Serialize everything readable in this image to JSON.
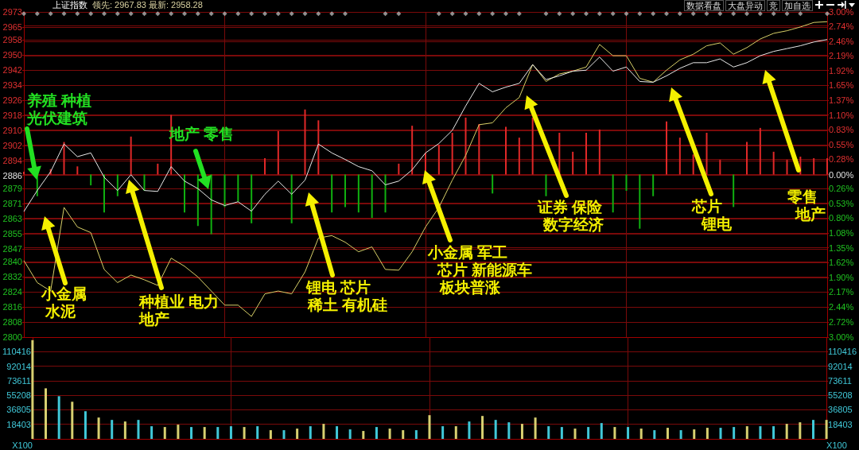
{
  "chart_data": [
    {
      "type": "line",
      "title": "上证指数",
      "subtitle": "领先: 2967.83 最新: 2958.28",
      "categories": [
        null,
        null,
        null,
        null,
        null,
        null,
        null,
        null,
        null,
        null,
        null,
        null,
        null,
        null,
        null,
        null,
        null,
        null,
        null,
        null,
        null,
        null,
        null,
        null,
        null,
        null,
        null,
        null,
        null,
        null,
        null,
        null,
        null,
        null,
        null,
        null,
        null,
        null,
        null,
        null,
        null,
        null,
        null,
        null,
        null,
        null,
        null,
        null,
        null,
        null,
        null,
        null,
        null,
        null,
        null,
        null,
        null,
        null,
        null,
        null,
        null
      ],
      "series": [
        {
          "type": "bar",
          "axis": "y2",
          "color": "#e02828",
          "values": [
            0.05,
            null,
            0.1,
            0.6,
            0.15,
            null,
            null,
            null,
            0.7,
            null,
            0.2,
            1.1,
            null,
            null,
            null,
            null,
            null,
            null,
            0.3,
            0.8,
            null,
            1.2,
            1.0,
            null,
            null,
            null,
            null,
            null,
            0.2,
            0.9,
            0.4,
            0.55,
            0.77,
            1.05,
            0.93,
            null,
            0.88,
            0.68,
            1.05,
            null,
            0.77,
            0.42,
            0.77,
            0.83,
            null,
            null,
            null,
            null,
            0.98,
            0.68,
            0.37,
            0.77,
            0.27,
            null,
            0.6,
            0.86,
            0.42,
            0.27,
            0.33,
            0.3,
            0.3
          ]
        },
        {
          "type": "bar",
          "axis": "y2",
          "color": "#10b010",
          "values": [
            null,
            -0.4,
            null,
            null,
            null,
            -0.2,
            -0.7,
            -0.4,
            null,
            -0.3,
            null,
            null,
            -0.7,
            -0.95,
            -1.1,
            -0.6,
            -0.5,
            -0.9,
            null,
            null,
            -0.9,
            null,
            null,
            -0.7,
            -0.6,
            -0.7,
            -0.8,
            -0.7,
            null,
            null,
            null,
            null,
            null,
            null,
            null,
            -0.35,
            null,
            null,
            null,
            -0.4,
            null,
            null,
            null,
            null,
            -0.7,
            -0.3,
            -1.0,
            -0.4,
            null,
            null,
            null,
            null,
            null,
            -0.6,
            null,
            null,
            null,
            null,
            null,
            null,
            null
          ]
        },
        {
          "color": "#d8d068",
          "values": [
            2840.7,
            2829,
            2824.5,
            2869,
            2858.6,
            2855.6,
            2836,
            2829,
            2833,
            2830.5,
            2827.5,
            2842,
            2837.7,
            2832,
            2824.5,
            2817,
            2817,
            2811,
            2823,
            2824.5,
            2823,
            2834.7,
            2852.7,
            2854,
            2850.5,
            2845.4,
            2848,
            2836,
            2835.6,
            2845.4,
            2858.6,
            2869,
            2883.5,
            2896.7,
            2913,
            2914,
            2922,
            2927.5,
            2945,
            2936,
            2940,
            2941.5,
            2943.7,
            2955.7,
            2949.7,
            2949.7,
            2937.7,
            2935.6,
            2942,
            2947.5,
            2950.5,
            2955,
            2956.5,
            2950.5,
            2954,
            2958.6,
            2961.6,
            2963,
            2965,
            2967.4,
            2967.8
          ]
        },
        {
          "color": "#e8e8e8",
          "values": [
            2866.8,
            2878,
            2888,
            2902.7,
            2896,
            2898,
            2885,
            2878,
            2886.4,
            2878,
            2877.5,
            2890.7,
            2883,
            2879,
            2873,
            2870,
            2872,
            2867,
            2876,
            2883,
            2876,
            2883.5,
            2902.7,
            2898,
            2894.5,
            2890.7,
            2888.5,
            2881,
            2883,
            2889,
            2898,
            2903,
            2910,
            2923,
            2935,
            2930.5,
            2933,
            2935,
            2945,
            2937,
            2939,
            2941.5,
            2942,
            2949,
            2941.5,
            2943.7,
            2936,
            2935.6,
            2939,
            2943,
            2946,
            2946,
            2948,
            2943.7,
            2946,
            2949.7,
            2952,
            2953.5,
            2955,
            2957,
            2958.3
          ]
        },
        {
          "type": "scatter",
          "marker": "diamond",
          "color": "#b4b4b4",
          "values": [
            2972,
            2972,
            2972,
            2972,
            2972,
            2972,
            2972,
            2972,
            2972,
            2972,
            2972,
            2972,
            2972,
            2972,
            2972,
            2972,
            2972,
            2972,
            2972,
            2972,
            2972,
            2972,
            2972,
            2972,
            2972,
            null,
            null,
            2972,
            2972,
            null,
            null,
            2972,
            2972,
            2972,
            2972,
            2972,
            2972,
            2972,
            null,
            2972,
            2972,
            2972,
            2972,
            2972,
            2972,
            2972,
            2972,
            2972,
            2972,
            2972,
            2972,
            2972,
            2972,
            2972,
            2972,
            2972,
            2972,
            2972,
            2972,
            null,
            2972
          ]
        }
      ],
      "marker": "none",
      "line_style": "solid",
      "grid": true,
      "tick_labels": "y",
      "ylim": [
        2800,
        2973
      ],
      "yticks": [
        2800,
        2808,
        2816,
        2824,
        2832,
        2840,
        2847,
        2855,
        2863,
        2871,
        2879,
        2886,
        2894,
        2902,
        2910,
        2918,
        2926,
        2934,
        2942,
        2950,
        2958,
        2965,
        2973
      ],
      "y2lim": [
        -3,
        3
      ],
      "y2ticks": [
        {
          "value": -3,
          "label": "3.00%"
        },
        {
          "value": -2.72,
          "label": "2.72%"
        },
        {
          "value": -2.44,
          "label": "2.44%"
        },
        {
          "value": -2.17,
          "label": "2.17%"
        },
        {
          "value": -1.9,
          "label": "1.90%"
        },
        {
          "value": -1.62,
          "label": "1.62%"
        },
        {
          "value": -1.35,
          "label": "1.35%"
        },
        {
          "value": -1.08,
          "label": "1.08%"
        },
        {
          "value": -0.8,
          "label": "0.80%"
        },
        {
          "value": -0.53,
          "label": "0.53%"
        },
        {
          "value": -0.26,
          "label": "0.26%"
        },
        {
          "value": 0,
          "label": "0.00%"
        },
        {
          "value": 0.28,
          "label": "0.28%"
        },
        {
          "value": 0.55,
          "label": "0.55%"
        },
        {
          "value": 0.83,
          "label": "0.83%"
        },
        {
          "value": 1.1,
          "label": "1.10%"
        },
        {
          "value": 1.37,
          "label": "1.37%"
        },
        {
          "value": 1.65,
          "label": "1.65%"
        },
        {
          "value": 1.92,
          "label": "1.92%"
        },
        {
          "value": 2.19,
          "label": "2.19%"
        },
        {
          "value": 2.46,
          "label": "2.46%"
        },
        {
          "value": 2.74,
          "label": "2.74%"
        },
        {
          "value": 3,
          "label": "3.00%"
        }
      ],
      "annotations": [
        "养殖 种植",
        "光伏建筑",
        "地产 零售",
        "小金属",
        "水泥",
        "种植业 电力",
        "地产",
        "锂电 芯片",
        "稀土 有机硅",
        "小金属 军工",
        "芯片 新能源车",
        "板块普涨",
        "证券 保险",
        "数字经济",
        "芯片",
        "锂电",
        "零售",
        "地产",
        "数据看盘",
        "大盘异动",
        "竞",
        "加自选"
      ]
    },
    {
      "type": "bar",
      "categories": [
        null,
        null,
        null,
        null,
        null,
        null,
        null,
        null,
        null,
        null,
        null,
        null,
        null,
        null,
        null,
        null,
        null,
        null,
        null,
        null,
        null,
        null,
        null,
        null,
        null,
        null,
        null,
        null,
        null,
        null,
        null,
        null,
        null,
        null,
        null,
        null,
        null,
        null,
        null,
        null,
        null,
        null,
        null,
        null,
        null,
        null,
        null,
        null,
        null,
        null,
        null,
        null,
        null,
        null,
        null,
        null,
        null,
        null,
        null,
        null,
        null
      ],
      "values": [
        125000,
        64000,
        54000,
        47000,
        35000,
        27000,
        24000,
        22000,
        24000,
        16000,
        15000,
        18000,
        15000,
        15000,
        15000,
        16000,
        15000,
        16000,
        11000,
        11000,
        13000,
        16000,
        19000,
        16000,
        12000,
        10000,
        15000,
        13000,
        11000,
        11000,
        30000,
        16000,
        16000,
        22000,
        29000,
        24000,
        21000,
        19000,
        27000,
        16000,
        15000,
        13000,
        15000,
        20000,
        15000,
        15000,
        13000,
        11000,
        14000,
        11000,
        12000,
        14000,
        14000,
        15000,
        16000,
        16000,
        16000,
        19000,
        21000,
        24000,
        24000
      ],
      "colors": [
        "#d8d070",
        "#d8d070",
        "#40c8d8",
        "#d8d070",
        "#40c8d8",
        "#d8d070",
        "#40c8d8",
        "#d8d070",
        "#40c8d8",
        "#40c8d8",
        "#d8d070",
        "#d8d070",
        "#40c8d8",
        "#d8d070",
        "#40c8d8",
        "#40c8d8",
        "#d8d070",
        "#40c8d8",
        "#d8d070",
        "#40c8d8",
        "#d8d070",
        "#40c8d8",
        "#d8d070",
        "#40c8d8",
        "#40c8d8",
        "#d8d070",
        "#40c8d8",
        "#d8d070",
        "#d8d070",
        "#40c8d8",
        "#d8d070",
        "#40c8d8",
        "#d8d070",
        "#40c8d8",
        "#d8d070",
        "#40c8d8",
        "#40c8d8",
        "#d8d070",
        "#d8d070",
        "#40c8d8",
        "#40c8d8",
        "#d8d070",
        "#40c8d8",
        "#40c8d8",
        "#d8d070",
        "#40c8d8",
        "#d8d070",
        "#40c8d8",
        "#d8d070",
        "#40c8d8",
        "#d8d070",
        "#d8d070",
        "#40c8d8",
        "#40c8d8",
        "#d8d070",
        "#40c8d8",
        "#40c8d8",
        "#d8d070",
        "#d8d070",
        "#40c8d8",
        "#d8d070"
      ],
      "grid": true,
      "tick_labels": "y",
      "ylim": [
        0,
        128818
      ],
      "yticks": [
        18403,
        36805,
        55208,
        73611,
        92014,
        110416
      ],
      "ylabel": "X100",
      "y2lim": [
        0,
        128818
      ],
      "y2ticks": [
        18403,
        36805,
        55208,
        73611,
        92014,
        110416
      ],
      "y2label": "X100"
    }
  ]
}
